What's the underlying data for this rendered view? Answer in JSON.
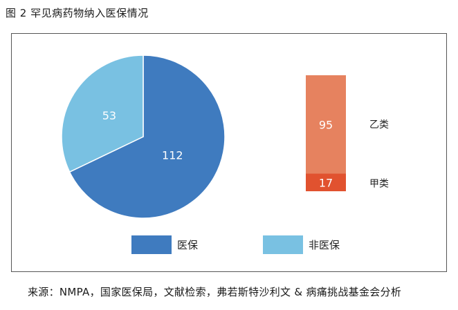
{
  "figure_title": "图 2   罕见病药物纳入医保情况",
  "source_note": "来源：NMPA，国家医保局，文献检索，弗若斯特沙利文 & 病痛挑战基金会分析",
  "chart_data": [
    {
      "type": "pie",
      "categories": [
        "医保",
        "非医保"
      ],
      "values": [
        112,
        53
      ],
      "colors": [
        "#3f7bbf",
        "#79c1e2"
      ],
      "legend_position": "bottom"
    },
    {
      "type": "bar",
      "stacked": true,
      "categories": [
        ""
      ],
      "series": [
        {
          "name": "甲类",
          "values": [
            17
          ],
          "color": "#e1522f"
        },
        {
          "name": "乙类",
          "values": [
            95
          ],
          "color": "#e6825f"
        }
      ],
      "legend_position": "right"
    }
  ]
}
